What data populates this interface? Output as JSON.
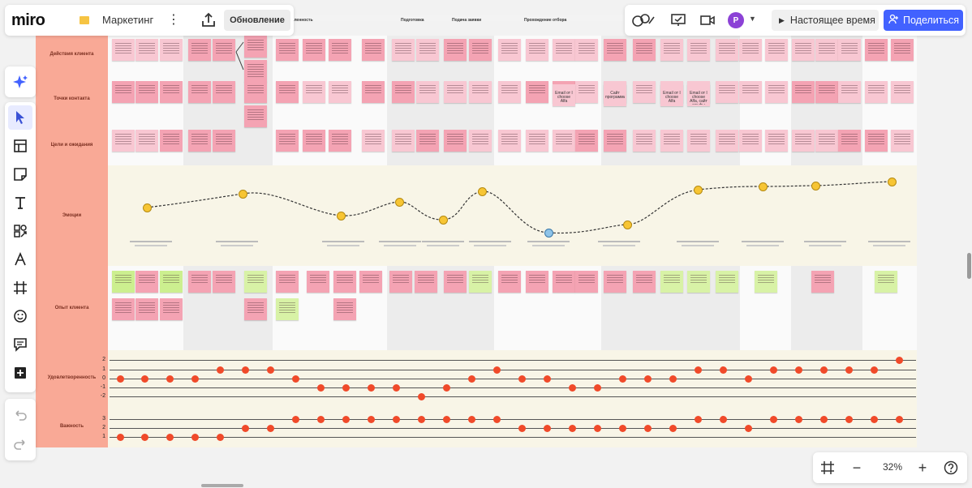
{
  "app": {
    "logo": "miro",
    "board_name": "Маркетинг",
    "update_label": "Обновление"
  },
  "toolbar_right": {
    "avatar_letter": "P",
    "realtime_label": "Настоящее время",
    "share_label": "Поделиться"
  },
  "zoom": {
    "value": "32%"
  },
  "journey": {
    "column_headers": [
      "Осведомленность",
      "Подготовка",
      "Подача заявки",
      "Прохождение отбора"
    ],
    "rows": [
      {
        "key": "actions",
        "label": "Действия клиента"
      },
      {
        "key": "touchpoints",
        "label": "Точки контакта"
      },
      {
        "key": "goals",
        "label": "Цели и ожидания"
      },
      {
        "key": "emotions",
        "label": "Эмоции"
      },
      {
        "key": "experience",
        "label": "Опыт клиента"
      },
      {
        "key": "satisfaction",
        "label": "Удовлетворенность"
      },
      {
        "key": "importance",
        "label": "Важность"
      }
    ],
    "satisfaction_scale": [
      "2",
      "1",
      "0",
      "-1",
      "-2"
    ],
    "importance_scale": [
      "3",
      "2",
      "1"
    ],
    "satisfaction_values": [
      0,
      0,
      0,
      0,
      1,
      1,
      1,
      0,
      -1,
      -1,
      -1,
      -1,
      -2,
      -1,
      0,
      1,
      0,
      0,
      -1,
      -1,
      0,
      0,
      0,
      1,
      1,
      0,
      1,
      1,
      1,
      1,
      1,
      2
    ],
    "importance_values": [
      1,
      1,
      1,
      1,
      1,
      2,
      2,
      3,
      3,
      3,
      3,
      3,
      3,
      3,
      3,
      3,
      2,
      2,
      2,
      2,
      2,
      2,
      2,
      3,
      3,
      2,
      3,
      3,
      3,
      3,
      3,
      3
    ],
    "touchpoint_texts": [
      "Email от I choose Alfa",
      "Email от Альфы",
      "Сайт программы",
      "Email от I choose Alfa, сайт альфы"
    ]
  },
  "icons": [
    "smile-icon",
    "neutral-icon",
    "sad-icon",
    "worried-icon"
  ]
}
